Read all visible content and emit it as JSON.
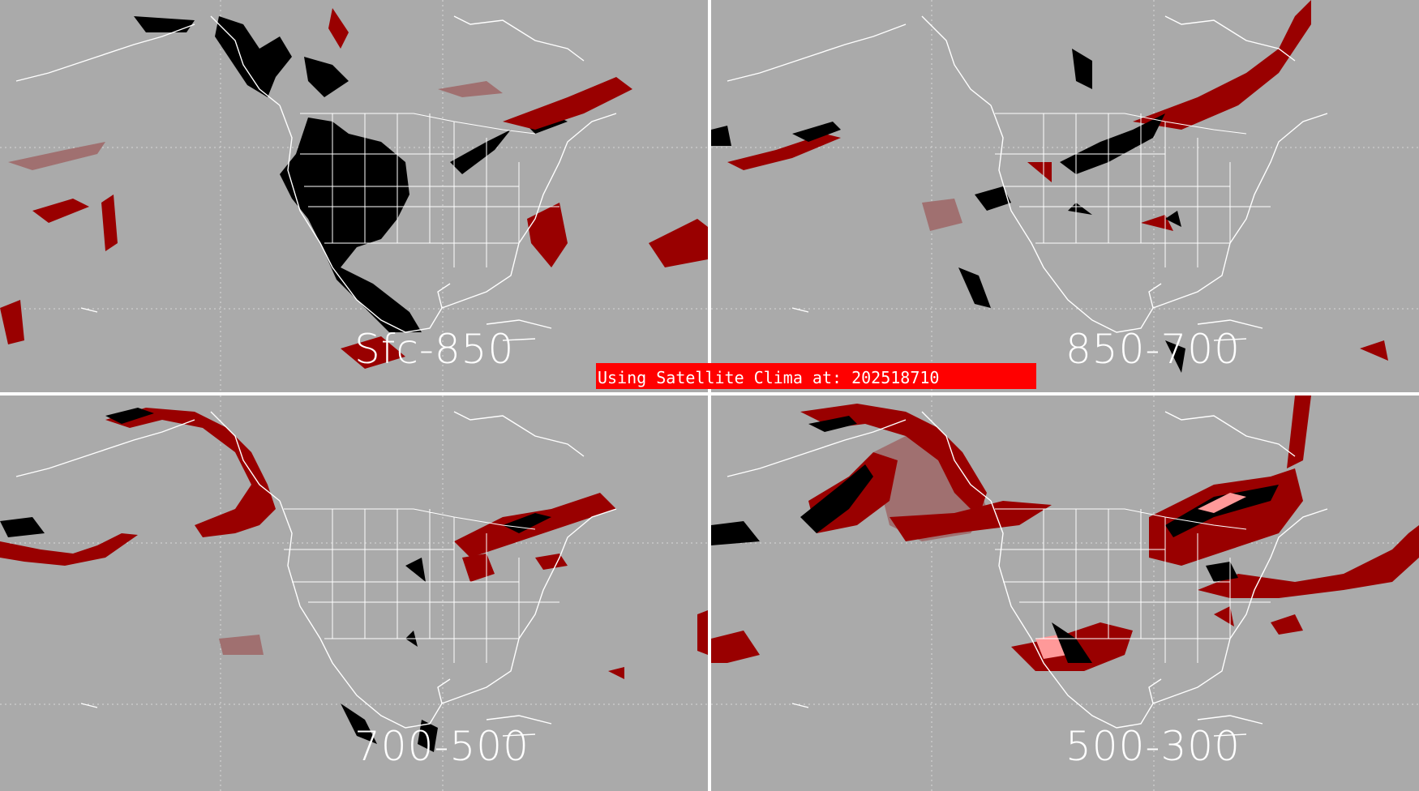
{
  "panels": [
    {
      "id": "sfc-850",
      "label": "Sfc-850"
    },
    {
      "id": "850-700",
      "label": "850-700"
    },
    {
      "id": "700-500",
      "label": "700-500"
    },
    {
      "id": "500-300",
      "label": "500-300"
    }
  ],
  "banner": {
    "text": "Using Satellite Clima at: 202518710"
  },
  "colors": {
    "background": "#aaaaaa",
    "black_region": "#000000",
    "dark_red": "#990000",
    "red": "#cc0000",
    "muted_rose": "#a07070",
    "pink": "#ff9999",
    "outline": "#ffffff",
    "banner": "#ff0000"
  }
}
